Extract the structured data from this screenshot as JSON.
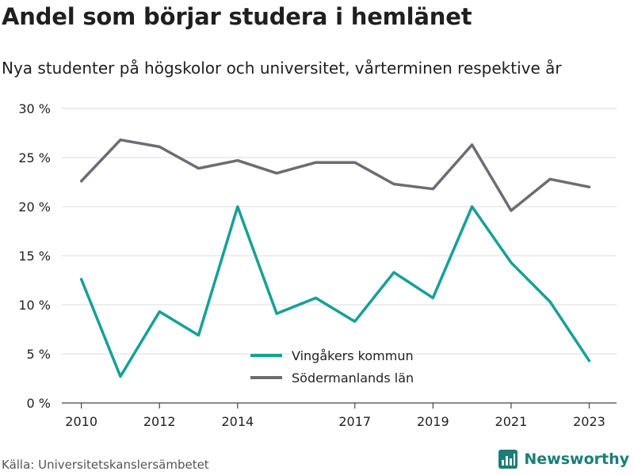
{
  "title": "Andel som börjar studera i hemlänet",
  "subtitle": "Nya studenter på högskolor och universitet, vårterminen respektive år",
  "source": "Källa: Universitetskanslersämbetet",
  "brand": {
    "name": "Newsworthy",
    "icon": "bar-chart-logo-icon",
    "color": "#1a7e78"
  },
  "chart_data": {
    "type": "line",
    "x": [
      2010,
      2011,
      2012,
      2013,
      2014,
      2015,
      2016,
      2017,
      2018,
      2019,
      2020,
      2021,
      2022,
      2023
    ],
    "x_tick_labels": [
      "2010",
      "2012",
      "2014",
      "2017",
      "2019",
      "2021",
      "2023"
    ],
    "x_tick_values": [
      2010,
      2012,
      2014,
      2017,
      2019,
      2021,
      2023
    ],
    "y_tick_labels": [
      "0 %",
      "5 %",
      "10 %",
      "15 %",
      "20 %",
      "25 %",
      "30 %"
    ],
    "y_tick_values": [
      0,
      5,
      10,
      15,
      20,
      25,
      30
    ],
    "ylim": [
      0,
      30
    ],
    "xlim": [
      2009.5,
      2023.7
    ],
    "grid": true,
    "legend": "bottom-center",
    "series": [
      {
        "name": "Vingåkers kommun",
        "color": "#16a096",
        "values": [
          12.6,
          2.7,
          9.3,
          6.9,
          20.0,
          9.1,
          10.7,
          8.3,
          13.3,
          10.7,
          20.0,
          14.3,
          10.3,
          4.3
        ]
      },
      {
        "name": "Södermanlands län",
        "color": "#6d6c74",
        "values": [
          22.6,
          26.8,
          26.1,
          23.9,
          24.7,
          23.4,
          24.5,
          24.5,
          22.3,
          21.8,
          26.3,
          19.6,
          22.8,
          22.0
        ]
      }
    ]
  }
}
